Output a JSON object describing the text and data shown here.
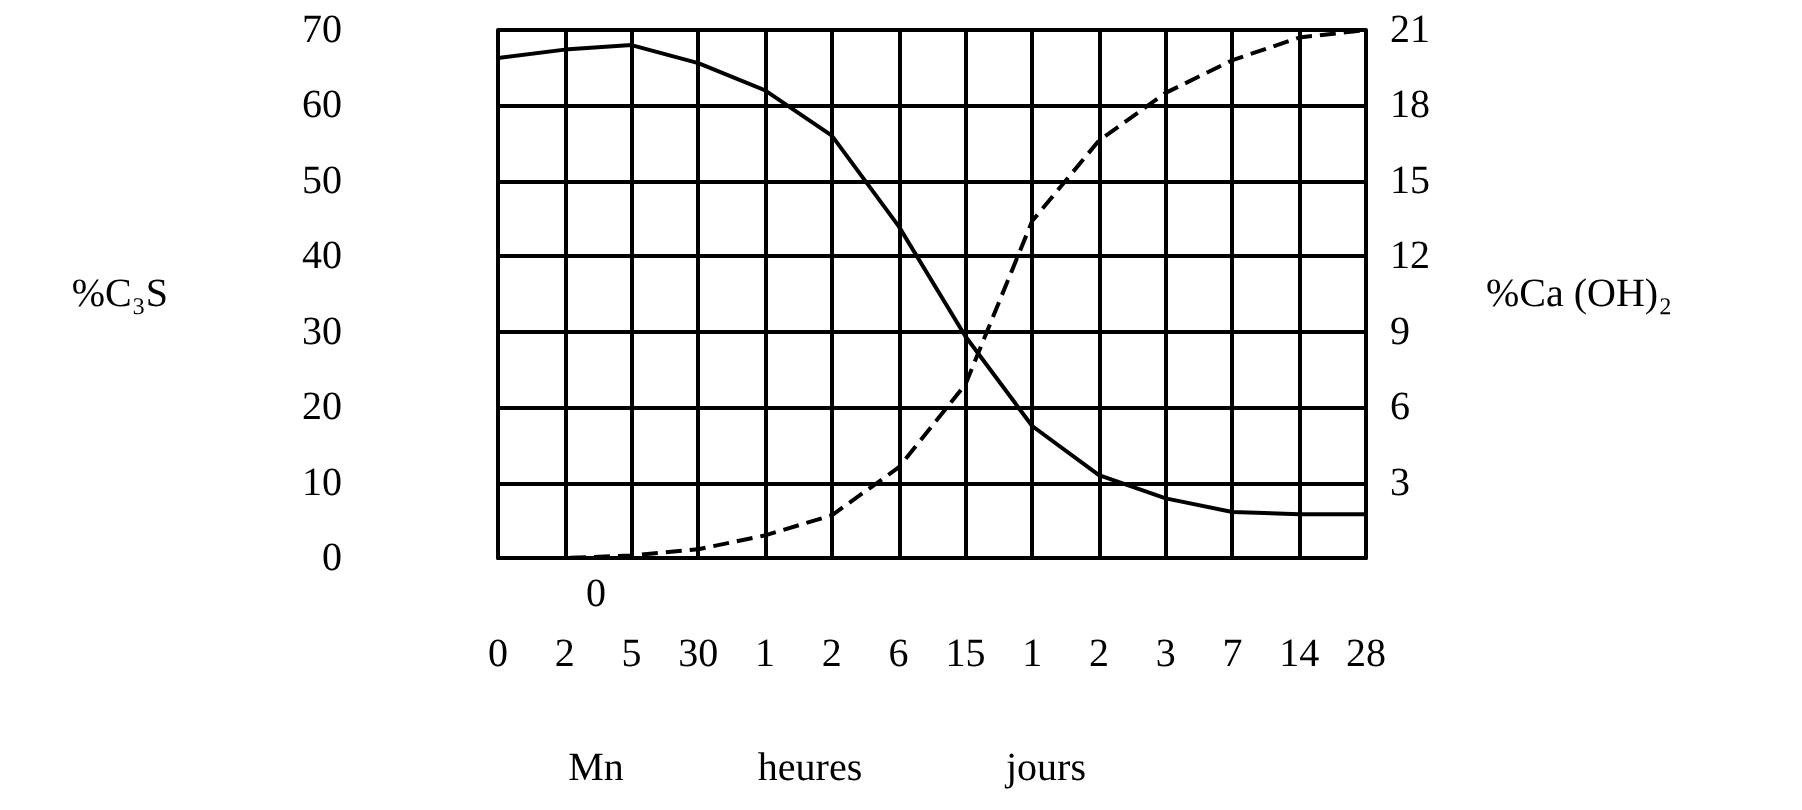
{
  "chart_data": {
    "type": "line",
    "categories": [
      "0",
      "2",
      "5",
      "30",
      "1",
      "2",
      "6",
      "15",
      "1",
      "2",
      "3",
      "7",
      "14",
      "28"
    ],
    "series": [
      {
        "color": "#000000",
        "line_style": "solid",
        "values": [
          66.3,
          67.4,
          68,
          65.6,
          62,
          56,
          44,
          29.4,
          17.5,
          11,
          7.9,
          6.1,
          5.8,
          5.8
        ]
      },
      {
        "color": "#000000",
        "line_style": "dashed",
        "axis": "y2",
        "values": [
          0,
          0,
          0.1,
          0.35,
          0.9,
          1.7,
          3.6,
          6.9,
          13.4,
          16.6,
          18.5,
          19.8,
          20.7,
          21
        ]
      }
    ],
    "ylabel": "%C₃S",
    "y2label": "%Ca (OH)₂",
    "ylim": [
      0,
      70
    ],
    "yticks": [
      0,
      10,
      20,
      30,
      40,
      50,
      60,
      70
    ],
    "y2lim": [
      0,
      21
    ],
    "y2ticks": [
      3,
      6,
      9,
      12,
      15,
      18,
      21
    ],
    "grid": true,
    "marker": "none",
    "annotations": [
      "0",
      "Mn",
      "heures",
      "jours"
    ]
  }
}
